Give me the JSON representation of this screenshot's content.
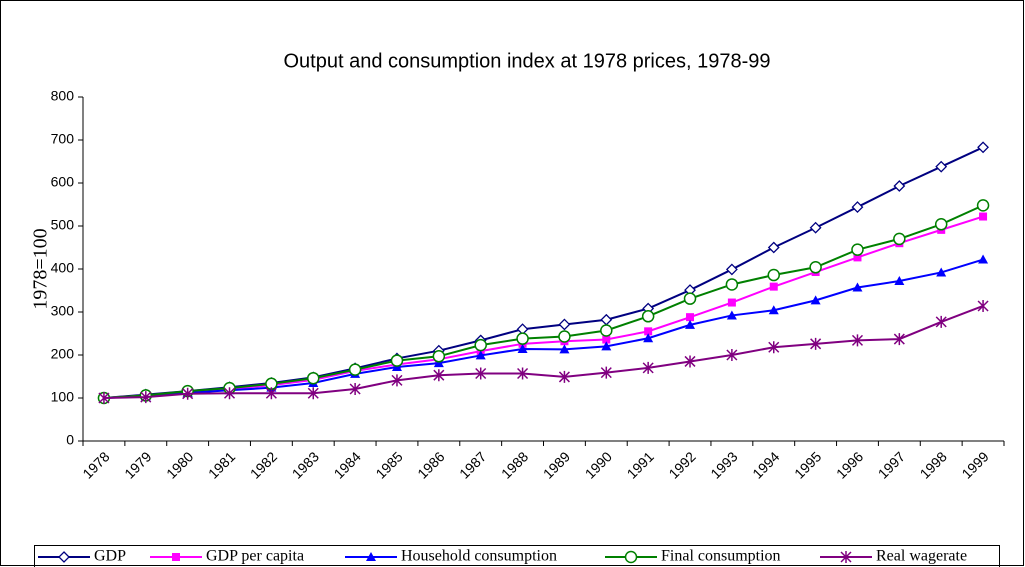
{
  "chart_data": {
    "type": "line",
    "title": "Output and consumption index at 1978 prices, 1978-99",
    "ylabel": "1978=100",
    "categories": [
      "1978",
      "1979",
      "1980",
      "1981",
      "1982",
      "1983",
      "1984",
      "1985",
      "1986",
      "1987",
      "1988",
      "1989",
      "1990",
      "1991",
      "1992",
      "1993",
      "1994",
      "1995",
      "1996",
      "1997",
      "1998",
      "1999"
    ],
    "ylim": [
      0,
      800
    ],
    "yticks": [
      0,
      100,
      200,
      300,
      400,
      500,
      600,
      700,
      800
    ],
    "legend": "bottom",
    "series": [
      {
        "name": "GDP",
        "color": "#000080",
        "marker": "diamond",
        "values": [
          100,
          108,
          116,
          125,
          135,
          148,
          169,
          192,
          210,
          234,
          260,
          271,
          282,
          308,
          351,
          399,
          450,
          496,
          544,
          593,
          638,
          683
        ]
      },
      {
        "name": "GDP per capita",
        "color": "#ff00ff",
        "marker": "square",
        "values": [
          100,
          106,
          114,
          121,
          130,
          142,
          163,
          178,
          190,
          209,
          226,
          232,
          236,
          255,
          288,
          322,
          359,
          393,
          427,
          460,
          491,
          522
        ]
      },
      {
        "name": "Household consumption",
        "color": "#0000ff",
        "marker": "triangle",
        "values": [
          100,
          104,
          112,
          118,
          124,
          135,
          156,
          172,
          181,
          199,
          214,
          213,
          220,
          239,
          270,
          292,
          304,
          327,
          357,
          372,
          392,
          422
        ]
      },
      {
        "name": "Final consumption",
        "color": "#008000",
        "marker": "circle",
        "values": [
          100,
          106,
          116,
          123,
          133,
          146,
          166,
          187,
          197,
          223,
          238,
          243,
          257,
          290,
          331,
          364,
          386,
          404,
          445,
          470,
          504,
          548
        ]
      },
      {
        "name": "Real wagerate",
        "color": "#800080",
        "marker": "star",
        "values": [
          100,
          102,
          110,
          111,
          111,
          111,
          121,
          141,
          153,
          157,
          157,
          149,
          159,
          170,
          185,
          200,
          218,
          226,
          234,
          237,
          277,
          314
        ]
      }
    ]
  }
}
